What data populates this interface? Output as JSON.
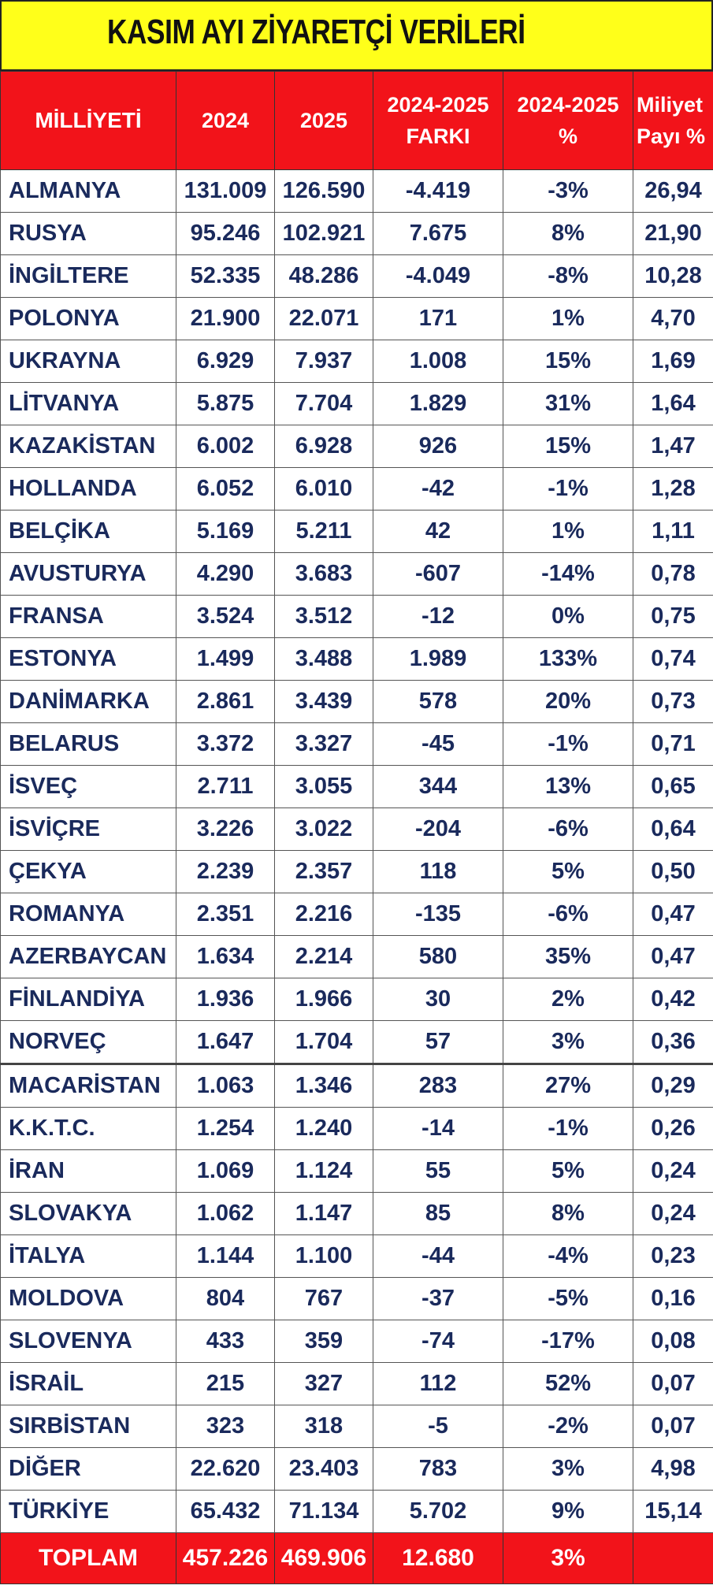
{
  "title": "KASIM AYI ZİYARETÇİ VERİLERİ",
  "colors": {
    "title_bg": "#ffff1a",
    "header_bg": "#f2131a",
    "text": "#1a2a5c"
  },
  "columns": [
    [
      "MİLLİYETİ"
    ],
    [
      "2024"
    ],
    [
      "2025"
    ],
    [
      "2024-2025",
      "FARKI"
    ],
    [
      "2024-2025",
      "%"
    ],
    [
      "Miliyet",
      "Payı %"
    ]
  ],
  "rows": [
    [
      "ALMANYA",
      "131.009",
      "126.590",
      "-4.419",
      "-3%",
      "26,94"
    ],
    [
      "RUSYA",
      "95.246",
      "102.921",
      "7.675",
      "8%",
      "21,90"
    ],
    [
      "İNGİLTERE",
      "52.335",
      "48.286",
      "-4.049",
      "-8%",
      "10,28"
    ],
    [
      "POLONYA",
      "21.900",
      "22.071",
      "171",
      "1%",
      "4,70"
    ],
    [
      "UKRAYNA",
      "6.929",
      "7.937",
      "1.008",
      "15%",
      "1,69"
    ],
    [
      "LİTVANYA",
      "5.875",
      "7.704",
      "1.829",
      "31%",
      "1,64"
    ],
    [
      "KAZAKİSTAN",
      "6.002",
      "6.928",
      "926",
      "15%",
      "1,47"
    ],
    [
      "HOLLANDA",
      "6.052",
      "6.010",
      "-42",
      "-1%",
      "1,28"
    ],
    [
      "BELÇİKA",
      "5.169",
      "5.211",
      "42",
      "1%",
      "1,11"
    ],
    [
      "AVUSTURYA",
      "4.290",
      "3.683",
      "-607",
      "-14%",
      "0,78"
    ],
    [
      "FRANSA",
      "3.524",
      "3.512",
      "-12",
      "0%",
      "0,75"
    ],
    [
      "ESTONYA",
      "1.499",
      "3.488",
      "1.989",
      "133%",
      "0,74"
    ],
    [
      "DANİMARKA",
      "2.861",
      "3.439",
      "578",
      "20%",
      "0,73"
    ],
    [
      "BELARUS",
      "3.372",
      "3.327",
      "-45",
      "-1%",
      "0,71"
    ],
    [
      "İSVEÇ",
      "2.711",
      "3.055",
      "344",
      "13%",
      "0,65"
    ],
    [
      "İSVİÇRE",
      "3.226",
      "3.022",
      "-204",
      "-6%",
      "0,64"
    ],
    [
      "ÇEKYA",
      "2.239",
      "2.357",
      "118",
      "5%",
      "0,50"
    ],
    [
      "ROMANYA",
      "2.351",
      "2.216",
      "-135",
      "-6%",
      "0,47"
    ],
    [
      "AZERBAYCAN",
      "1.634",
      "2.214",
      "580",
      "35%",
      "0,47"
    ],
    [
      "FİNLANDİYA",
      "1.936",
      "1.966",
      "30",
      "2%",
      "0,42"
    ],
    [
      "NORVEÇ",
      "1.647",
      "1.704",
      "57",
      "3%",
      "0,36"
    ],
    [
      "MACARİSTAN",
      "1.063",
      "1.346",
      "283",
      "27%",
      "0,29"
    ],
    [
      "K.K.T.C.",
      "1.254",
      "1.240",
      "-14",
      "-1%",
      "0,26"
    ],
    [
      "İRAN",
      "1.069",
      "1.124",
      "55",
      "5%",
      "0,24"
    ],
    [
      "SLOVAKYA",
      "1.062",
      "1.147",
      "85",
      "8%",
      "0,24"
    ],
    [
      "İTALYA",
      "1.144",
      "1.100",
      "-44",
      "-4%",
      "0,23"
    ],
    [
      "MOLDOVA",
      "804",
      "767",
      "-37",
      "-5%",
      "0,16"
    ],
    [
      "SLOVENYA",
      "433",
      "359",
      "-74",
      "-17%",
      "0,08"
    ],
    [
      "İSRAİL",
      "215",
      "327",
      "112",
      "52%",
      "0,07"
    ],
    [
      "SIRBİSTAN",
      "323",
      "318",
      "-5",
      "-2%",
      "0,07"
    ],
    [
      "DİĞER",
      "22.620",
      "23.403",
      "783",
      "3%",
      "4,98"
    ],
    [
      "TÜRKİYE",
      "65.432",
      "71.134",
      "5.702",
      "9%",
      "15,14"
    ]
  ],
  "total": [
    "TOPLAM",
    "457.226",
    "469.906",
    "12.680",
    "3%",
    ""
  ]
}
